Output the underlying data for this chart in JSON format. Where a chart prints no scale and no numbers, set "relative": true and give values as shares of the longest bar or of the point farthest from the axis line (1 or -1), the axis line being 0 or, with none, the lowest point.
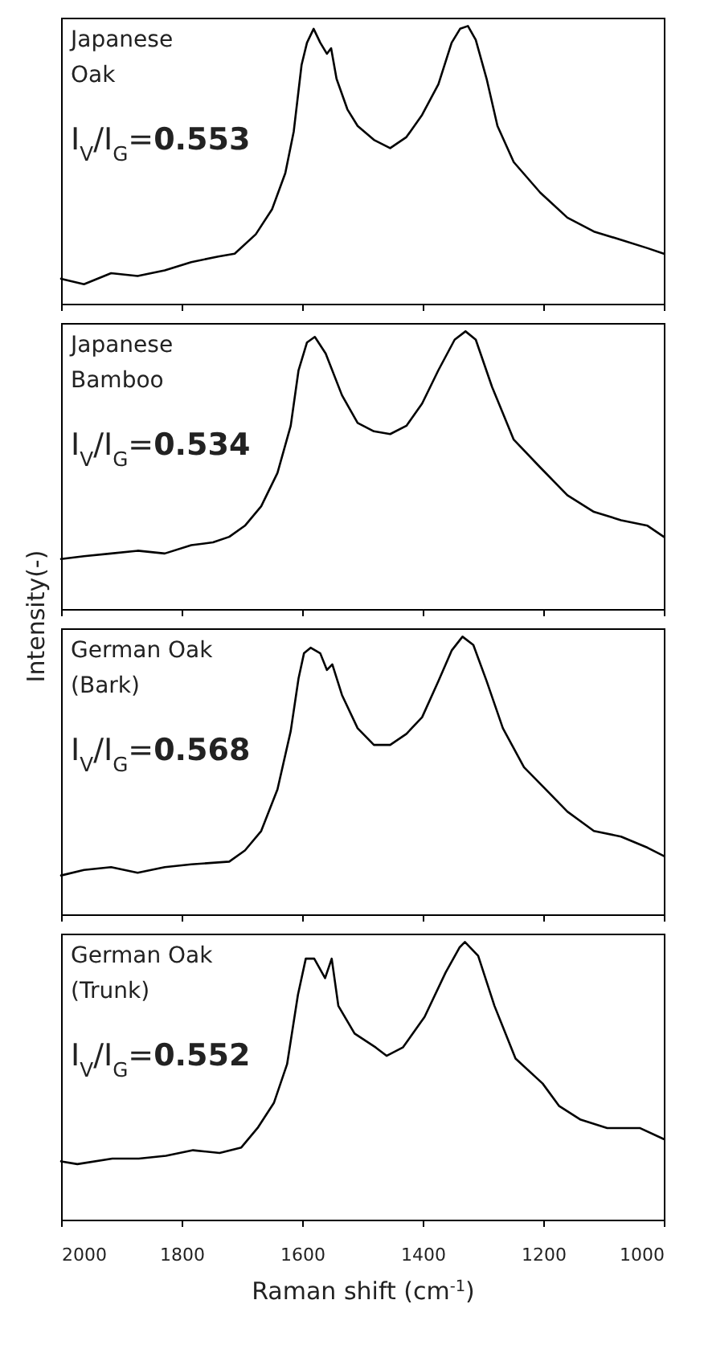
{
  "chart_data": [
    {
      "type": "line",
      "relative": true,
      "xlim": [
        2000,
        1000
      ],
      "xticks": [
        2000,
        1800,
        1600,
        1400,
        1200,
        1000
      ],
      "tick_labels": false,
      "annotations": [
        "Japanese",
        "Oak",
        "I$_{V}$/I$_{G}$=0.553"
      ],
      "x": [
        2000,
        1962,
        1917,
        1873,
        1828,
        1784,
        1739,
        1712,
        1677,
        1650,
        1628,
        1614,
        1601,
        1592,
        1581,
        1570,
        1559,
        1552,
        1543,
        1525,
        1508,
        1481,
        1454,
        1427,
        1401,
        1374,
        1352,
        1338,
        1325,
        1312,
        1294,
        1276,
        1249,
        1205,
        1160,
        1116,
        1071,
        1027,
        1000
      ],
      "series": [
        {
          "color": "#000000",
          "values": [
            0.09,
            0.07,
            0.11,
            0.1,
            0.12,
            0.15,
            0.17,
            0.18,
            0.25,
            0.34,
            0.47,
            0.62,
            0.86,
            0.94,
            0.99,
            0.94,
            0.9,
            0.92,
            0.81,
            0.7,
            0.64,
            0.59,
            0.56,
            0.6,
            0.68,
            0.79,
            0.94,
            0.99,
            1,
            0.95,
            0.81,
            0.64,
            0.51,
            0.4,
            0.31,
            0.26,
            0.23,
            0.2,
            0.18
          ]
        }
      ]
    },
    {
      "type": "line",
      "relative": true,
      "xlim": [
        2000,
        1000
      ],
      "xticks": [
        2000,
        1800,
        1600,
        1400,
        1200,
        1000
      ],
      "tick_labels": false,
      "ylabel": "Intensity(-)",
      "annotations": [
        "Japanese",
        "Bamboo",
        "I$_{V}$/I$_{G}$=0.534"
      ],
      "x": [
        2000,
        1962,
        1917,
        1873,
        1828,
        1784,
        1748,
        1721,
        1695,
        1668,
        1641,
        1619,
        1606,
        1592,
        1579,
        1561,
        1534,
        1508,
        1481,
        1454,
        1427,
        1401,
        1374,
        1347,
        1329,
        1312,
        1285,
        1249,
        1205,
        1160,
        1116,
        1071,
        1027,
        1000
      ],
      "series": [
        {
          "color": "#000000",
          "values": [
            0.18,
            0.19,
            0.2,
            0.21,
            0.2,
            0.23,
            0.24,
            0.26,
            0.3,
            0.37,
            0.49,
            0.66,
            0.86,
            0.96,
            0.98,
            0.92,
            0.77,
            0.67,
            0.64,
            0.63,
            0.66,
            0.74,
            0.86,
            0.97,
            1,
            0.97,
            0.8,
            0.61,
            0.51,
            0.41,
            0.35,
            0.32,
            0.3,
            0.26
          ]
        }
      ]
    },
    {
      "type": "line",
      "relative": true,
      "xlim": [
        2000,
        1000
      ],
      "xticks": [
        2000,
        1800,
        1600,
        1400,
        1200,
        1000
      ],
      "tick_labels": false,
      "annotations": [
        "German Oak",
        "(Bark)",
        "I$_{V}$/I$_{G}$=0.568"
      ],
      "x": [
        2000,
        1962,
        1917,
        1873,
        1828,
        1784,
        1721,
        1695,
        1668,
        1641,
        1619,
        1606,
        1597,
        1586,
        1570,
        1559,
        1550,
        1534,
        1508,
        1481,
        1454,
        1427,
        1401,
        1374,
        1352,
        1334,
        1316,
        1294,
        1267,
        1232,
        1196,
        1160,
        1116,
        1071,
        1027,
        1000
      ],
      "series": [
        {
          "color": "#000000",
          "values": [
            0.14,
            0.16,
            0.17,
            0.15,
            0.17,
            0.18,
            0.19,
            0.23,
            0.3,
            0.45,
            0.66,
            0.85,
            0.94,
            0.96,
            0.94,
            0.88,
            0.9,
            0.79,
            0.67,
            0.61,
            0.61,
            0.65,
            0.71,
            0.84,
            0.95,
            1,
            0.97,
            0.84,
            0.67,
            0.53,
            0.45,
            0.37,
            0.3,
            0.28,
            0.24,
            0.21
          ]
        }
      ]
    },
    {
      "type": "line",
      "relative": true,
      "xlim": [
        2000,
        1000
      ],
      "xticks": [
        2000,
        1800,
        1600,
        1400,
        1200,
        1000
      ],
      "tick_labels": "x",
      "xlabel": "Raman shift (cm$^{-1}$)",
      "annotations": [
        "German Oak",
        "(Trunk)",
        "I$_{V}$/I$_{G}$=0.552"
      ],
      "x": [
        2000,
        1973,
        1915,
        1871,
        1826,
        1781,
        1737,
        1701,
        1674,
        1647,
        1625,
        1607,
        1594,
        1580,
        1562,
        1551,
        1540,
        1513,
        1478,
        1460,
        1433,
        1397,
        1362,
        1339,
        1330,
        1308,
        1281,
        1246,
        1201,
        1174,
        1138,
        1094,
        1040,
        1000
      ],
      "series": [
        {
          "color": "#000000",
          "values": [
            0.21,
            0.2,
            0.22,
            0.22,
            0.23,
            0.25,
            0.24,
            0.26,
            0.33,
            0.42,
            0.56,
            0.81,
            0.94,
            0.94,
            0.87,
            0.94,
            0.77,
            0.67,
            0.62,
            0.59,
            0.62,
            0.73,
            0.89,
            0.98,
            1,
            0.95,
            0.77,
            0.58,
            0.49,
            0.41,
            0.36,
            0.33,
            0.33,
            0.29
          ]
        }
      ]
    }
  ]
}
